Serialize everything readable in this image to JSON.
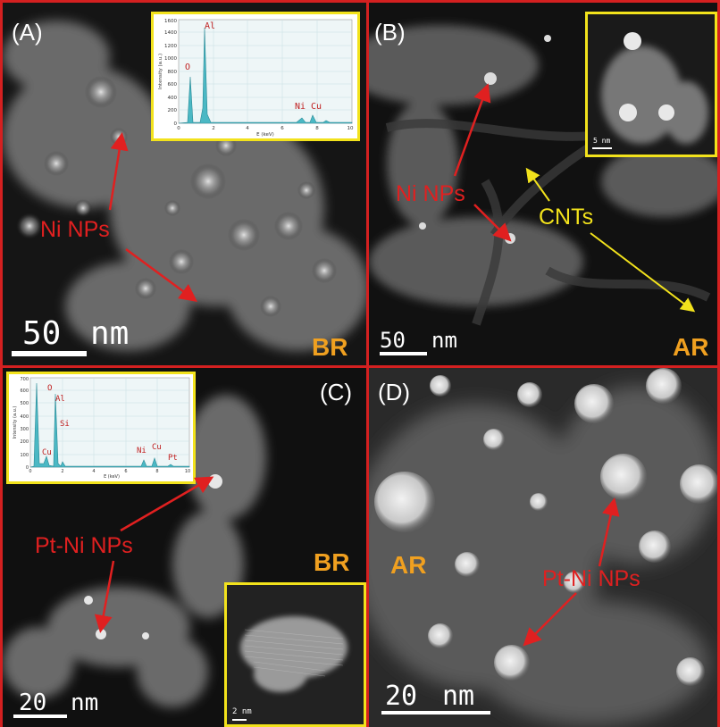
{
  "colors": {
    "frame": "#d42020",
    "arrow_red": "#e02020",
    "arrow_yellow": "#f2e21c",
    "tag": "#f0a020",
    "inset_border": "#f2e21c",
    "spectrum_fill": "#4bb8c4"
  },
  "panels": {
    "a": {
      "label": "(A)",
      "annotation": "Ni NPs",
      "scale_value": "50",
      "scale_unit": "nm",
      "tag": "BR",
      "spectrum": {
        "ylabel": "Intensity (a.u.)",
        "xlabel": "E (keV)",
        "yticks": [
          "0",
          "200",
          "400",
          "600",
          "800",
          "1000",
          "1200",
          "1400",
          "1600"
        ],
        "xticks": [
          "0",
          "2",
          "4",
          "6",
          "8",
          "10"
        ],
        "peaks": [
          "O",
          "Al",
          "Ni",
          "Cu"
        ]
      }
    },
    "b": {
      "label": "(B)",
      "annotation_np": "Ni NPs",
      "annotation_cnt": "CNTs",
      "scale_value": "50",
      "scale_unit": "nm",
      "tag": "AR",
      "inset_scale": "5 nm"
    },
    "c": {
      "label": "(C)",
      "annotation": "Pt-Ni NPs",
      "scale_value": "20",
      "scale_unit": "nm",
      "tag": "BR",
      "inset_scale": "2 nm",
      "spectrum": {
        "ylabel": "Intensity (a.u.)",
        "xlabel": "E (keV)",
        "yticks": [
          "0",
          "100",
          "200",
          "300",
          "400",
          "500",
          "600",
          "700"
        ],
        "xticks": [
          "0",
          "2",
          "4",
          "6",
          "8",
          "10"
        ],
        "peaks": [
          "O",
          "Al",
          "Si",
          "Cu",
          "Ni",
          "Cu",
          "Pt"
        ]
      }
    },
    "d": {
      "label": "(D)",
      "annotation": "Pt-Ni NPs",
      "scale_value": "20",
      "scale_unit": "nm",
      "tag": "AR"
    }
  }
}
